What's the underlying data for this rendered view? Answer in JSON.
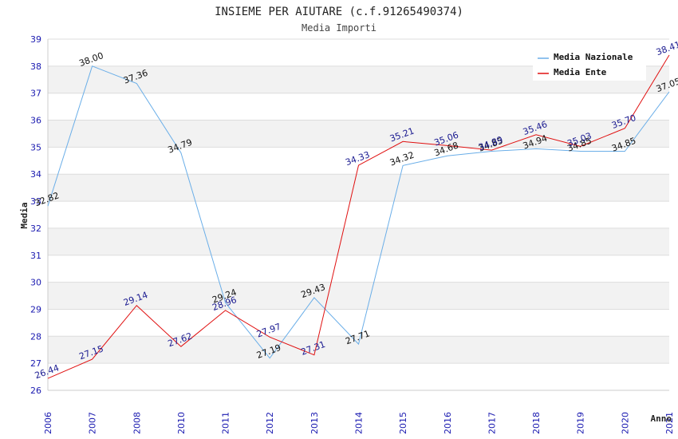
{
  "chart_data": {
    "type": "line",
    "title": "INSIEME PER AIUTARE (c.f.91265490374)",
    "subtitle": "Media Importi",
    "xlabel": "Anno",
    "ylabel": "Media",
    "ylim": [
      26,
      39
    ],
    "yticks": [
      "26",
      "27",
      "28",
      "29",
      "30",
      "31",
      "32",
      "33",
      "34",
      "35",
      "36",
      "37",
      "38",
      "39"
    ],
    "categories": [
      "2006",
      "2007",
      "2008",
      "2010",
      "2011",
      "2012",
      "2013",
      "2014",
      "2015",
      "2016",
      "2017",
      "2018",
      "2019",
      "2020",
      "2021"
    ],
    "legend_position": "top-right",
    "series": [
      {
        "name": "Media Nazionale",
        "color": "#6aaee8",
        "values": [
          32.82,
          38.0,
          37.36,
          34.79,
          29.24,
          27.19,
          29.43,
          27.71,
          34.32,
          34.68,
          34.85,
          34.94,
          34.85,
          34.85,
          37.05
        ],
        "labels": [
          "32.82",
          "38.00",
          "37.36",
          "34.79",
          "29.24",
          "27.19",
          "29.43",
          "27.71",
          "34.32",
          "34.68",
          "34.85",
          "34.94",
          "34.85",
          "34.85",
          "37.05"
        ]
      },
      {
        "name": "Media Ente",
        "color": "#e01010",
        "values": [
          26.44,
          27.15,
          29.14,
          27.62,
          28.96,
          27.97,
          27.31,
          34.33,
          35.21,
          35.06,
          34.89,
          35.46,
          35.03,
          35.7,
          38.41
        ],
        "labels": [
          "26.44",
          "27.15",
          "29.14",
          "27.62",
          "28.96",
          "27.97",
          "27.31",
          "34.33",
          "35.21",
          "35.06",
          "34.89",
          "35.46",
          "35.03",
          "35.70",
          "38.41"
        ]
      }
    ]
  }
}
